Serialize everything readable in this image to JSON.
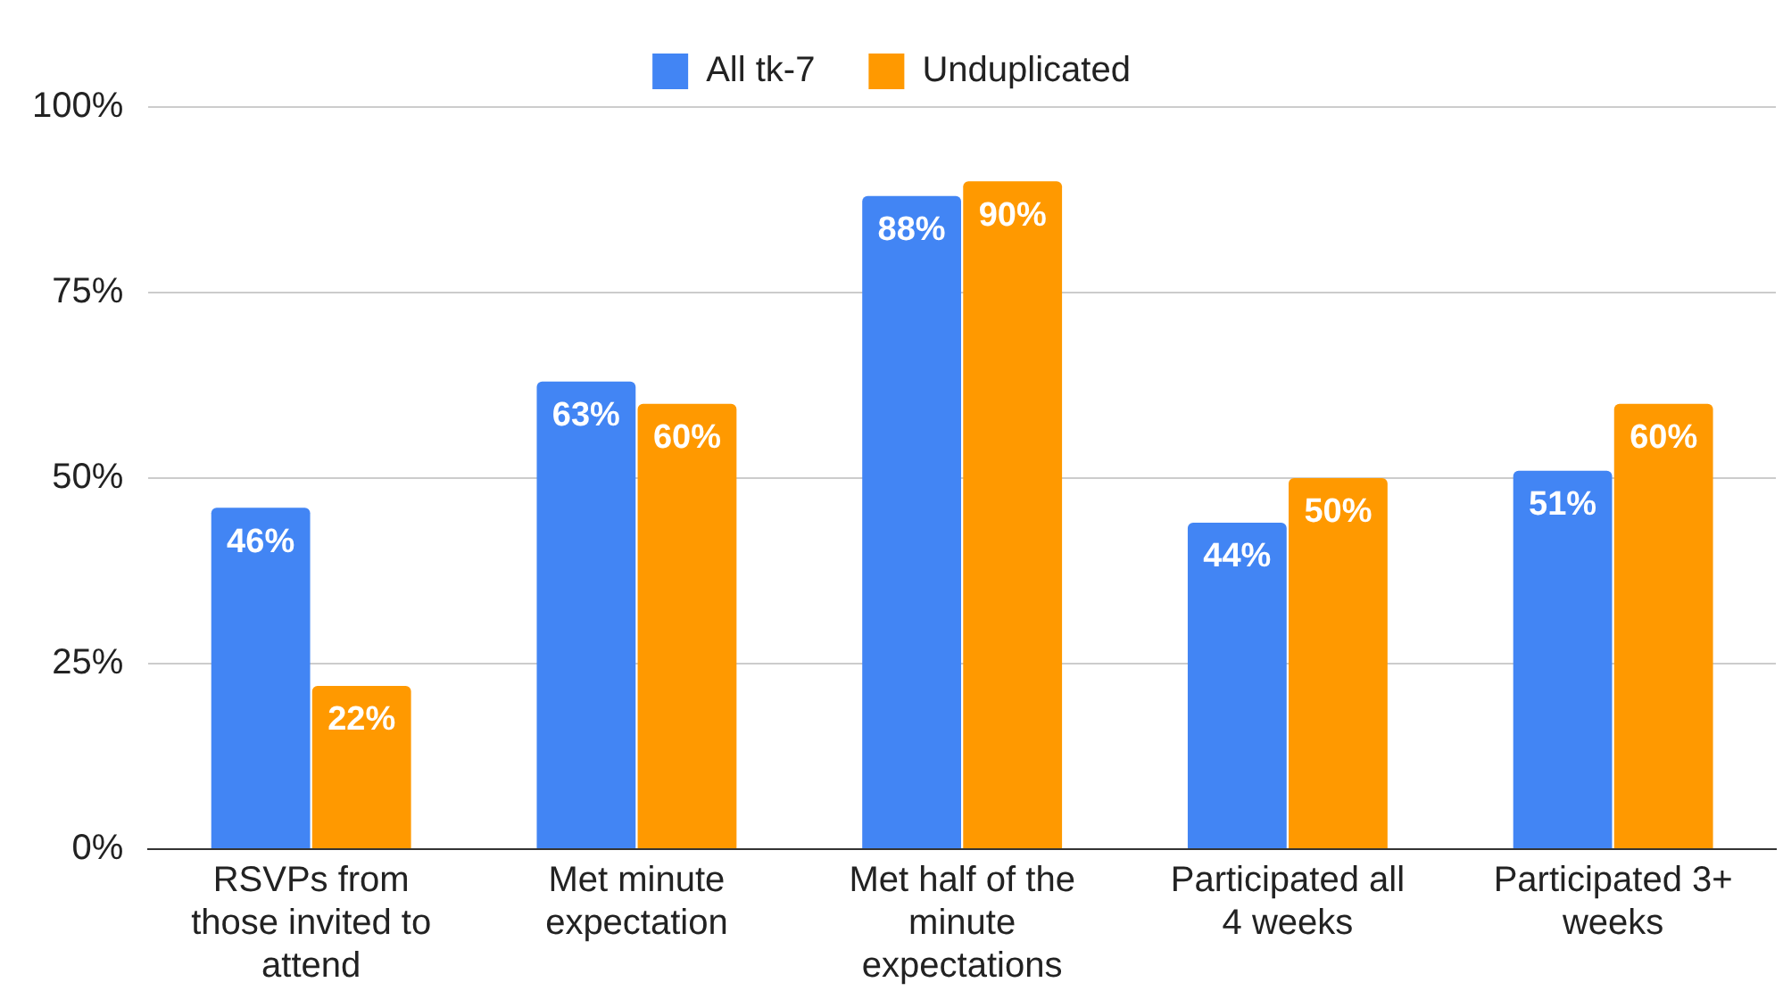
{
  "chart_data": {
    "type": "bar",
    "categories": [
      "RSVPs from those invited to attend",
      "Met minute expectation",
      "Met half of the minute expectations",
      "Participated all 4 weeks",
      "Participated 3+ weeks"
    ],
    "series": [
      {
        "name": "All tk-7",
        "color": "#4285f4",
        "values": [
          46,
          63,
          88,
          44,
          51
        ],
        "value_labels": [
          "46%",
          "63%",
          "88%",
          "44%",
          "51%"
        ]
      },
      {
        "name": "Unduplicated",
        "color": "#ff9900",
        "values": [
          22,
          60,
          90,
          50,
          60
        ],
        "value_labels": [
          "22%",
          "60%",
          "90%",
          "50%",
          "60%"
        ]
      }
    ],
    "ylim": [
      0,
      100
    ],
    "yticks": [
      {
        "value": 0,
        "label": "0%"
      },
      {
        "value": 25,
        "label": "25%"
      },
      {
        "value": 50,
        "label": "50%"
      },
      {
        "value": 75,
        "label": "75%"
      },
      {
        "value": 100,
        "label": "100%"
      }
    ],
    "grid": "y",
    "legend": "top"
  }
}
